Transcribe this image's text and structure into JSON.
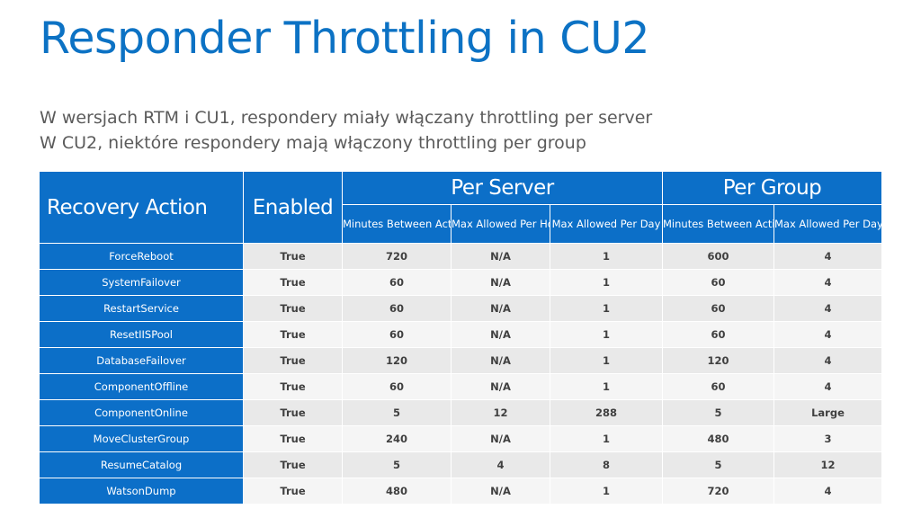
{
  "title": "Responder Throttling in CU2",
  "subtitle_lines": [
    "W wersjach RTM i CU1, respondery miały włączany throttling per server",
    "W CU2, niektóre respondery mają włączony throttling per group"
  ],
  "table": {
    "header_recovery": "Recovery Action",
    "header_enabled": "Enabled",
    "header_per_server": "Per Server",
    "header_per_group": "Per Group",
    "sub_headers": [
      "Minutes Between Actions",
      "Max Allowed Per Hour",
      "Max Allowed Per Day",
      "Minutes Between Actions",
      "Max Allowed Per Day"
    ],
    "rows": [
      {
        "action": "ForceReboot",
        "enabled": "True",
        "ps_minutes": "720",
        "ps_hour": "N/A",
        "ps_day": "1",
        "pg_minutes": "600",
        "pg_day": "4"
      },
      {
        "action": "SystemFailover",
        "enabled": "True",
        "ps_minutes": "60",
        "ps_hour": "N/A",
        "ps_day": "1",
        "pg_minutes": "60",
        "pg_day": "4"
      },
      {
        "action": "RestartService",
        "enabled": "True",
        "ps_minutes": "60",
        "ps_hour": "N/A",
        "ps_day": "1",
        "pg_minutes": "60",
        "pg_day": "4"
      },
      {
        "action": "ResetIISPool",
        "enabled": "True",
        "ps_minutes": "60",
        "ps_hour": "N/A",
        "ps_day": "1",
        "pg_minutes": "60",
        "pg_day": "4"
      },
      {
        "action": "DatabaseFailover",
        "enabled": "True",
        "ps_minutes": "120",
        "ps_hour": "N/A",
        "ps_day": "1",
        "pg_minutes": "120",
        "pg_day": "4"
      },
      {
        "action": "ComponentOffline",
        "enabled": "True",
        "ps_minutes": "60",
        "ps_hour": "N/A",
        "ps_day": "1",
        "pg_minutes": "60",
        "pg_day": "4"
      },
      {
        "action": "ComponentOnline",
        "enabled": "True",
        "ps_minutes": "5",
        "ps_hour": "12",
        "ps_day": "288",
        "pg_minutes": "5",
        "pg_day": "Large"
      },
      {
        "action": "MoveClusterGroup",
        "enabled": "True",
        "ps_minutes": "240",
        "ps_hour": "N/A",
        "ps_day": "1",
        "pg_minutes": "480",
        "pg_day": "3"
      },
      {
        "action": "ResumeCatalog",
        "enabled": "True",
        "ps_minutes": "5",
        "ps_hour": "4",
        "ps_day": "8",
        "pg_minutes": "5",
        "pg_day": "12"
      },
      {
        "action": "WatsonDump",
        "enabled": "True",
        "ps_minutes": "480",
        "ps_hour": "N/A",
        "ps_day": "1",
        "pg_minutes": "720",
        "pg_day": "4"
      }
    ]
  },
  "colors": {
    "title": "#0c72c4",
    "header_fill": "#0c6fc8",
    "row_odd": "#e9e9e9",
    "row_even": "#f5f5f5"
  }
}
